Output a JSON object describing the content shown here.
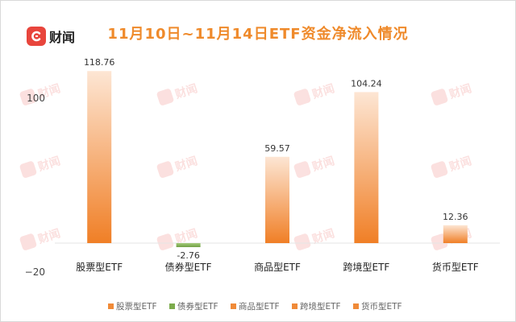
{
  "header": {
    "brand": "财闻",
    "title": "11月10日~11月14日ETF资金净流入情况"
  },
  "watermark_text": "财闻",
  "chart_data": {
    "type": "bar",
    "title": "11月10日~11月14日ETF资金净流入情况",
    "categories": [
      "股票型ETF",
      "债券型ETF",
      "商品型ETF",
      "跨境型ETF",
      "货币型ETF"
    ],
    "values": [
      118.76,
      -2.76,
      59.57,
      104.24,
      12.36
    ],
    "value_labels": [
      "118.76",
      "-2.76",
      "59.57",
      "104.24",
      "12.36"
    ],
    "colors": [
      "#f08a38",
      "#7cab4c",
      "#f08a38",
      "#f08a38",
      "#f08a38"
    ],
    "ylim": [
      -20,
      130
    ],
    "yticks": [
      100,
      -20
    ],
    "ytick_labels": [
      "100",
      "−20"
    ],
    "xlabel": "",
    "ylabel": "",
    "grid": false,
    "legend": {
      "position": "bottom",
      "entries": [
        "股票型ETF",
        "债券型ETF",
        "商品型ETF",
        "跨境型ETF",
        "货币型ETF"
      ]
    }
  }
}
